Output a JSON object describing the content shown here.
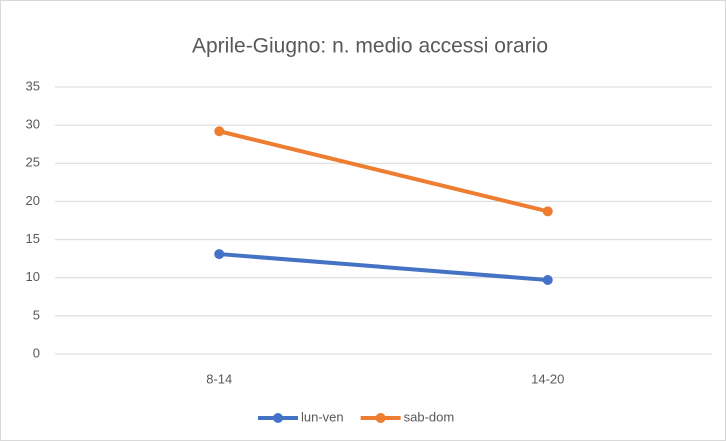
{
  "chart_data": {
    "type": "line",
    "title": "Aprile-Giugno: n. medio accessi orario",
    "categories": [
      "8-14",
      "14-20"
    ],
    "series": [
      {
        "name": "lun-ven",
        "color": "#4472c4",
        "values": [
          13.1,
          9.7
        ]
      },
      {
        "name": "sab-dom",
        "color": "#ed7d31",
        "values": [
          29.2,
          18.7
        ]
      }
    ],
    "ylim": [
      0,
      35
    ],
    "yticks": [
      0,
      5,
      10,
      15,
      20,
      25,
      30,
      35
    ],
    "grid": true,
    "legend": "bottom"
  }
}
